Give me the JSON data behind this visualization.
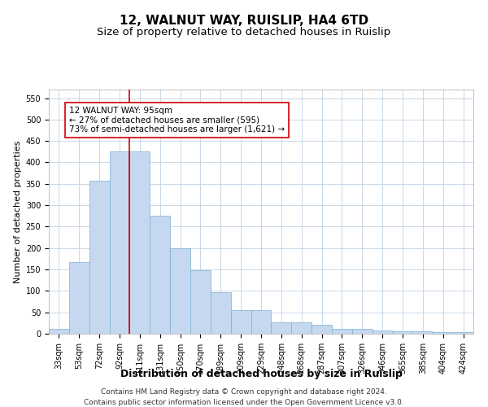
{
  "title": "12, WALNUT WAY, RUISLIP, HA4 6TD",
  "subtitle": "Size of property relative to detached houses in Ruislip",
  "xlabel": "Distribution of detached houses by size in Ruislip",
  "ylabel": "Number of detached properties",
  "footer_line1": "Contains HM Land Registry data © Crown copyright and database right 2024.",
  "footer_line2": "Contains public sector information licensed under the Open Government Licence v3.0.",
  "annotation_line1": "12 WALNUT WAY: 95sqm",
  "annotation_line2": "← 27% of detached houses are smaller (595)",
  "annotation_line3": "73% of semi-detached houses are larger (1,621) →",
  "categories": [
    "33sqm",
    "53sqm",
    "72sqm",
    "92sqm",
    "111sqm",
    "131sqm",
    "150sqm",
    "170sqm",
    "189sqm",
    "209sqm",
    "229sqm",
    "248sqm",
    "268sqm",
    "287sqm",
    "307sqm",
    "326sqm",
    "346sqm",
    "365sqm",
    "385sqm",
    "404sqm",
    "424sqm"
  ],
  "values": [
    12,
    168,
    357,
    425,
    425,
    275,
    199,
    149,
    96,
    55,
    55,
    27,
    27,
    20,
    11,
    11,
    7,
    5,
    5,
    3,
    3
  ],
  "bar_color": "#c5d8f0",
  "bar_edge_color": "#7bafd4",
  "vline_x_idx": 3.5,
  "vline_color": "#cc0000",
  "ylim": [
    0,
    570
  ],
  "yticks": [
    0,
    50,
    100,
    150,
    200,
    250,
    300,
    350,
    400,
    450,
    500,
    550
  ],
  "bg_color": "#ffffff",
  "grid_color": "#c8d8e8",
  "annotation_box_color": "#ffffff",
  "annotation_box_edgecolor": "#cc0000",
  "title_fontsize": 11,
  "subtitle_fontsize": 9.5,
  "xlabel_fontsize": 9,
  "ylabel_fontsize": 8,
  "tick_fontsize": 7,
  "annotation_fontsize": 7.5,
  "footer_fontsize": 6.5
}
